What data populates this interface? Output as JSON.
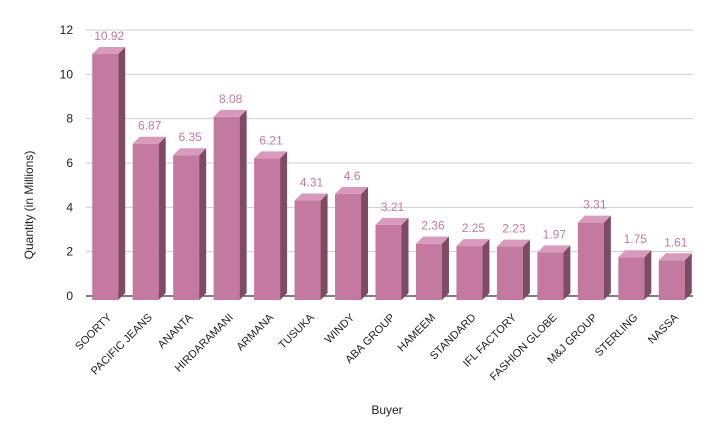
{
  "colors": {
    "bar_front": "#c47aa0",
    "bar_side": "#7f4a64",
    "bar_top": "#d79abb",
    "label": "#c47aa0",
    "grid": "#cfcfcf",
    "baseline": "#333333"
  },
  "chart_data": {
    "type": "bar",
    "style": "3d-column",
    "title": "",
    "xlabel": "Buyer",
    "ylabel": "Quantity (in Millions)",
    "ylim": [
      0,
      12
    ],
    "yticks": [
      0,
      2,
      4,
      6,
      8,
      10,
      12
    ],
    "grid": true,
    "categories": [
      "SOORTY",
      "PACIFIC JEANS",
      "ANANTA",
      "HIRDARAMANI",
      "ARMANA",
      "TUSUKA",
      "WINDY",
      "ABA GROUP",
      "HAMEEM",
      "STANDARD",
      "IFL FACTORY",
      "FASHION GLOBE",
      "M&J GROUP",
      "STERLING",
      "NASSA"
    ],
    "values": [
      10.92,
      6.87,
      6.35,
      8.08,
      6.21,
      4.31,
      4.6,
      3.21,
      2.36,
      2.25,
      2.23,
      1.97,
      3.31,
      1.75,
      1.61
    ],
    "data_labels": true
  }
}
